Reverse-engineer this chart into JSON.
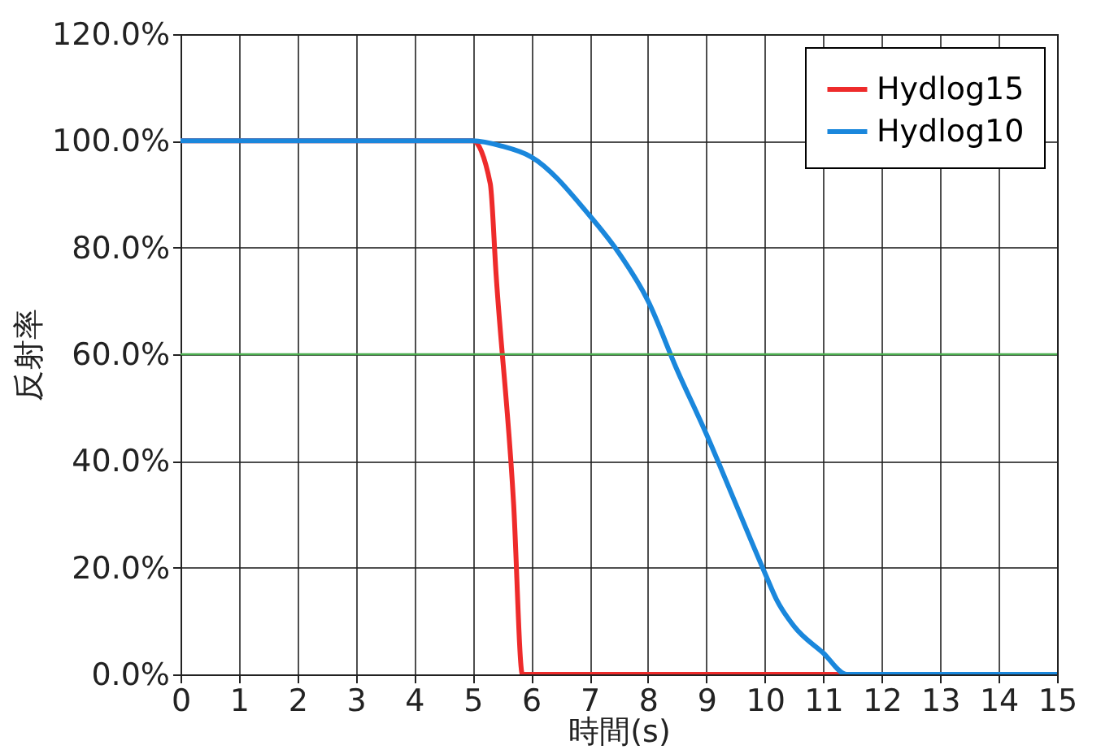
{
  "chart_data": {
    "type": "line",
    "xlabel": "時間(s)",
    "ylabel": "反射率",
    "xlim": [
      0,
      15
    ],
    "xticks": [
      0,
      1,
      2,
      3,
      4,
      5,
      6,
      7,
      8,
      9,
      10,
      11,
      12,
      13,
      14,
      15
    ],
    "ylim": [
      0,
      120
    ],
    "yticks": [
      {
        "value": 0,
        "label": "0.0%"
      },
      {
        "value": 20,
        "label": "20.0%"
      },
      {
        "value": 40,
        "label": "40.0%"
      },
      {
        "value": 60,
        "label": "60.0%"
      },
      {
        "value": 80,
        "label": "80.0%"
      },
      {
        "value": 100,
        "label": "100.0%"
      },
      {
        "value": 120,
        "label": "120.0%"
      }
    ],
    "grid": true,
    "legend": "top right",
    "marker": "none",
    "line_style": "solid",
    "ref_lines": [
      {
        "axis": "y",
        "value": 60,
        "color": "#4caf50"
      }
    ],
    "series": [
      {
        "name": "Hydlog15",
        "color": "#ee2b2b",
        "x": [
          0,
          5,
          5.3,
          5.4,
          5.7,
          5.85,
          15
        ],
        "values": [
          100,
          100,
          92,
          75,
          32,
          0,
          0
        ]
      },
      {
        "name": "Hydlog10",
        "color": "#1a87dc",
        "x": [
          0,
          5,
          5.5,
          6,
          7,
          7.5,
          8,
          8.5,
          9,
          9.5,
          10,
          10.2,
          10.5,
          11,
          11.4,
          15
        ],
        "values": [
          100,
          100,
          99,
          97,
          86,
          79,
          70,
          57,
          45,
          32,
          19,
          14,
          9,
          4,
          0,
          0
        ]
      }
    ]
  }
}
